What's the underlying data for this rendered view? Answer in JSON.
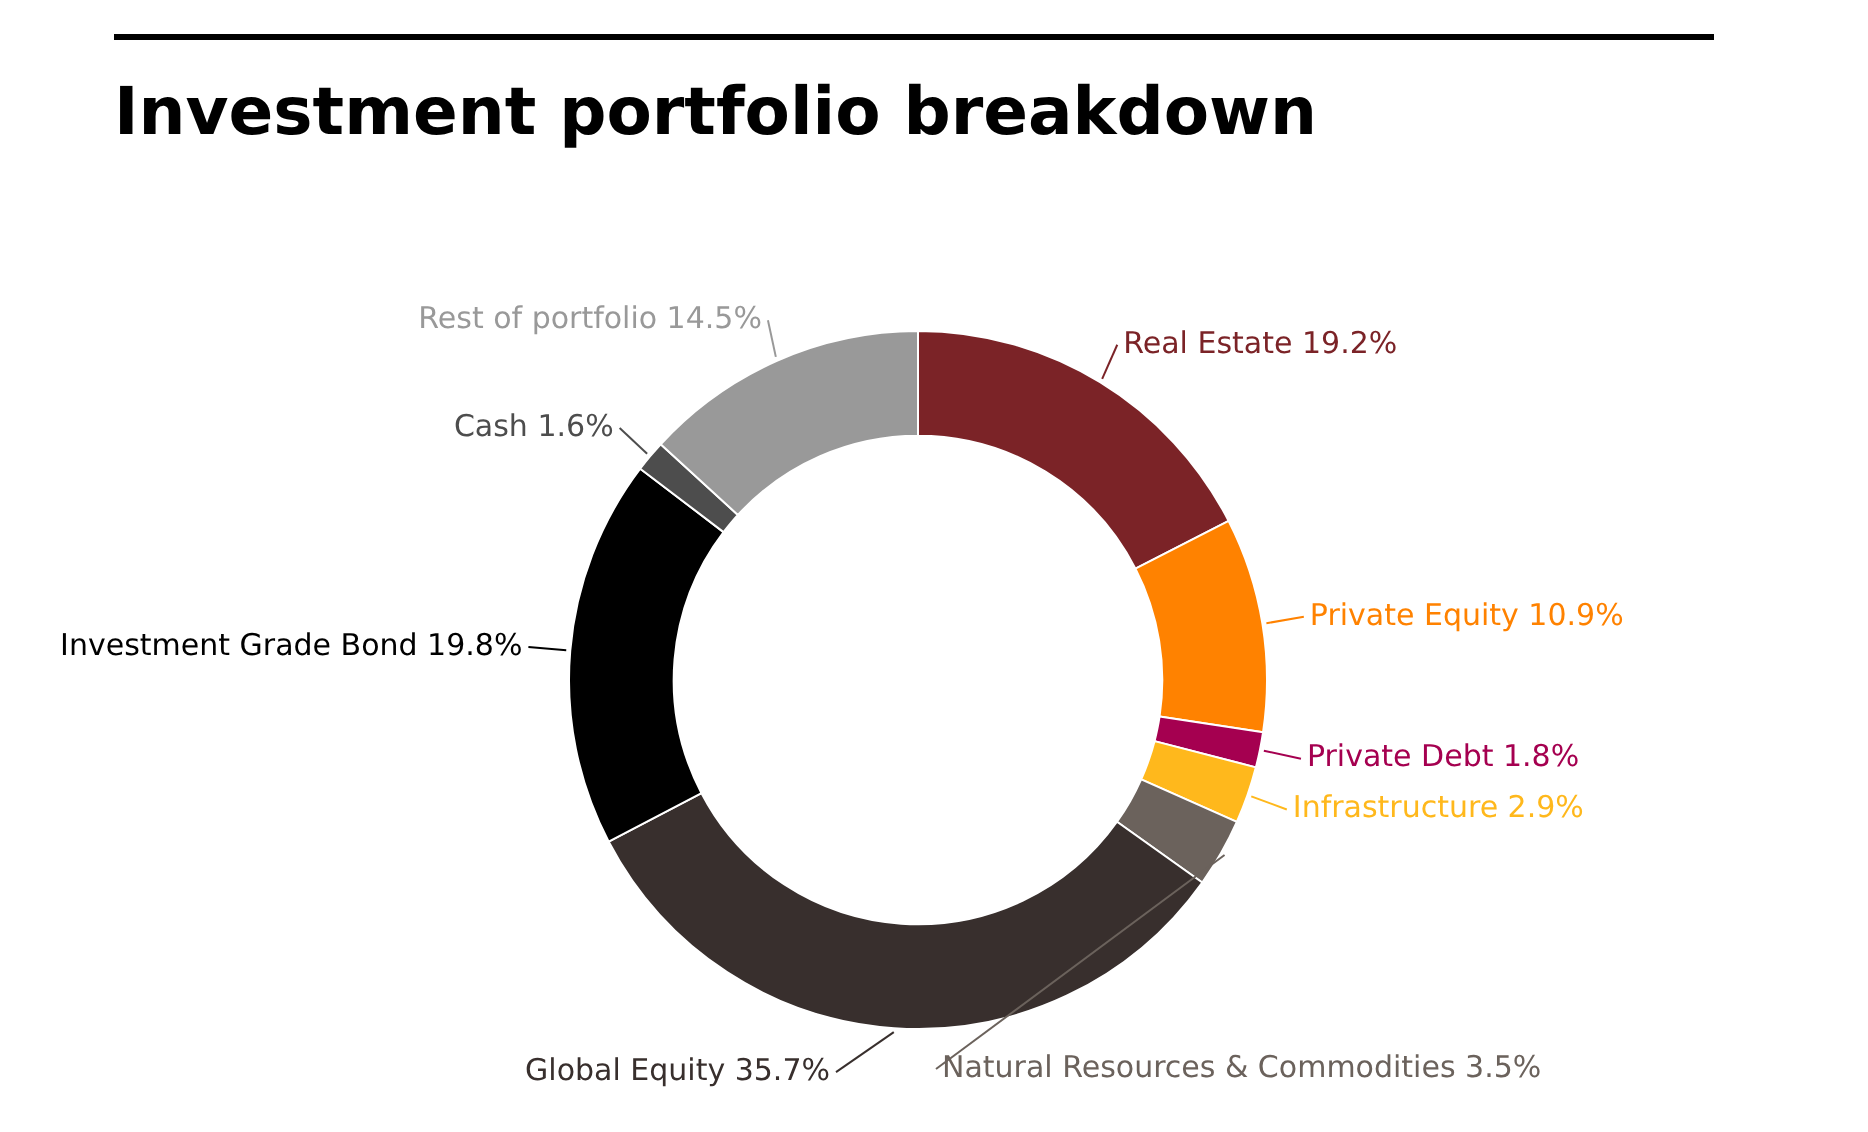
{
  "chart_data": {
    "type": "donut",
    "title": "Investment portfolio breakdown",
    "categories": [
      "Real Estate",
      "Private Equity",
      "Private Debt",
      "Infrastructure",
      "Natural Resources & Commodities",
      "Global Equity",
      "Investment Grade Bond",
      "Cash",
      "Rest of portfolio"
    ],
    "values": [
      19.2,
      10.9,
      1.8,
      2.9,
      3.5,
      35.7,
      19.8,
      1.6,
      14.5
    ],
    "value_labels": [
      "19.2%",
      "10.9%",
      "1.8%",
      "2.9%",
      "3.5%",
      "35.7%",
      "19.8%",
      "1.6%",
      "14.5%"
    ],
    "colors": [
      "#7b2327",
      "#ff8200",
      "#a50050",
      "#ffb81c",
      "#6b625c",
      "#382f2d",
      "#000000",
      "#4d4d4d",
      "#999999"
    ],
    "legend": false
  }
}
